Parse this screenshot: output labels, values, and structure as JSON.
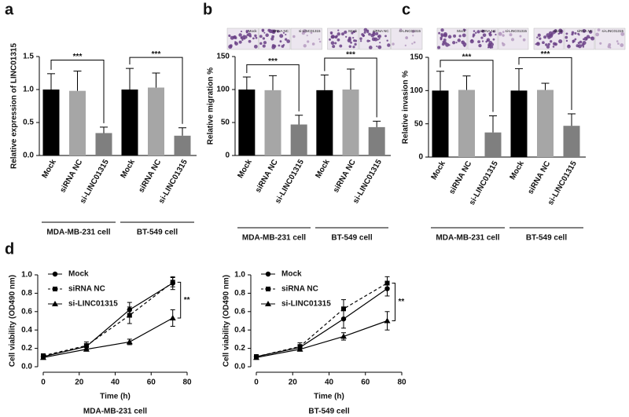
{
  "chart_data": [
    {
      "type": "bar",
      "label": "a",
      "ylabel": "Relative expression of LINC01315",
      "categories": [
        "Mock",
        "siRNA NC",
        "si-LINC01315",
        "Mock",
        "siRNA NC",
        "si-LINC01315"
      ],
      "values": [
        1.0,
        0.98,
        0.34,
        1.0,
        1.03,
        0.3
      ],
      "errors": [
        0.24,
        0.3,
        0.09,
        0.32,
        0.22,
        0.12
      ],
      "colors": [
        "#000000",
        "#a6a6a6",
        "#7f7f7f",
        "#000000",
        "#a6a6a6",
        "#7f7f7f"
      ],
      "groups": [
        {
          "name": "MDA-MB-231 cell",
          "annotation": "***"
        },
        {
          "name": "BT-549 cell",
          "annotation": "***"
        }
      ],
      "ylim": [
        0,
        1.5
      ],
      "yticks": [
        {
          "value": 0,
          "label": "0.0"
        },
        0.5,
        {
          "value": 1,
          "label": "1.0"
        },
        1.5
      ]
    },
    {
      "type": "bar",
      "label": "b",
      "ylabel": "Relative migration %",
      "images": [
        "Mock",
        "siRNA NC",
        "si-LINC01315",
        "Mock",
        "siRNA NC",
        "si-LINC01315"
      ],
      "categories": [
        "Mock",
        "siRNA NC",
        "si-LINC01315",
        "Mock",
        "siRNA NC",
        "si-LINC01315"
      ],
      "values": [
        100,
        99,
        47,
        99,
        100,
        43
      ],
      "errors": [
        19,
        22,
        14,
        23,
        31,
        9
      ],
      "colors": [
        "#000000",
        "#a6a6a6",
        "#7f7f7f",
        "#000000",
        "#a6a6a6",
        "#7f7f7f"
      ],
      "groups": [
        {
          "name": "MDA-MB-231 cell",
          "annotation": "***"
        },
        {
          "name": "BT-549 cell",
          "annotation": "***"
        }
      ],
      "ylim": [
        0,
        150
      ],
      "yticks": [
        0,
        50,
        100,
        150
      ]
    },
    {
      "type": "bar",
      "label": "c",
      "ylabel": "Relative invasion %",
      "images": [
        "Mock",
        "siRNA NC",
        "si-LINC01315",
        "Mock",
        "siRNA NC",
        "si-LINC01315"
      ],
      "categories": [
        "Mock",
        "siRNA NC",
        "si-LINC01315",
        "Mock",
        "siRNA NC",
        "si-LINC01315"
      ],
      "values": [
        100,
        101,
        37,
        100,
        101,
        47
      ],
      "errors": [
        29,
        21,
        25,
        33,
        10,
        18
      ],
      "colors": [
        "#000000",
        "#a6a6a6",
        "#7f7f7f",
        "#000000",
        "#a6a6a6",
        "#7f7f7f"
      ],
      "groups": [
        {
          "name": "MDA-MB-231 cell",
          "annotation": "***"
        },
        {
          "name": "BT-549 cell",
          "annotation": "***"
        }
      ],
      "ylim": [
        0,
        150
      ],
      "yticks": [
        0,
        50,
        100,
        150
      ]
    },
    {
      "type": "line",
      "label": "d",
      "ylabel": "Cell viability (OD490 nm)",
      "xlabel": "Time (h)",
      "caption": "MDA-MB-231 cell",
      "annotation": "**",
      "x": [
        0,
        24,
        48,
        72
      ],
      "series": [
        {
          "name": "Mock",
          "color": "#000000",
          "marker": "circle",
          "dashed": false,
          "values": [
            0.11,
            0.22,
            0.62,
            0.91
          ],
          "errors": [
            0.02,
            0.03,
            0.08,
            0.07
          ]
        },
        {
          "name": "siRNA NC",
          "color": "#000000",
          "marker": "square",
          "dashed": true,
          "values": [
            0.12,
            0.23,
            0.56,
            0.92
          ],
          "errors": [
            0.02,
            0.04,
            0.09,
            0.05
          ]
        },
        {
          "name": "si-LINC01315",
          "color": "#000000",
          "marker": "triangle",
          "dashed": false,
          "values": [
            0.1,
            0.19,
            0.27,
            0.53
          ],
          "errors": [
            0.02,
            0.02,
            0.03,
            0.09
          ]
        }
      ],
      "xlim": [
        0,
        80
      ],
      "xticks": [
        0,
        20,
        40,
        60,
        80
      ],
      "ylim": [
        0,
        1
      ],
      "yticks": [
        {
          "value": 0,
          "label": "0.0"
        },
        0.2,
        0.4,
        0.6,
        0.8,
        {
          "value": 1,
          "label": "1.0"
        }
      ]
    },
    {
      "type": "line",
      "ylabel": "Cell viability (OD490 nm)",
      "xlabel": "Time (h)",
      "caption": "BT-549 cell",
      "annotation": "**",
      "x": [
        0,
        24,
        48,
        72
      ],
      "series": [
        {
          "name": "Mock",
          "color": "#000000",
          "marker": "circle",
          "dashed": false,
          "values": [
            0.11,
            0.21,
            0.52,
            0.85
          ],
          "errors": [
            0.02,
            0.03,
            0.1,
            0.08
          ]
        },
        {
          "name": "siRNA NC",
          "color": "#000000",
          "marker": "square",
          "dashed": true,
          "values": [
            0.11,
            0.22,
            0.63,
            0.91
          ],
          "errors": [
            0.02,
            0.04,
            0.1,
            0.07
          ]
        },
        {
          "name": "si-LINC01315",
          "color": "#000000",
          "marker": "triangle",
          "dashed": false,
          "values": [
            0.1,
            0.19,
            0.33,
            0.5
          ],
          "errors": [
            0.02,
            0.02,
            0.04,
            0.1
          ]
        }
      ],
      "xlim": [
        0,
        80
      ],
      "xticks": [
        0,
        20,
        40,
        60,
        80
      ],
      "ylim": [
        0,
        1
      ],
      "yticks": [
        {
          "value": 0,
          "label": "0.0"
        },
        0.2,
        0.4,
        0.6,
        0.8,
        {
          "value": 1,
          "label": "1.0"
        }
      ]
    }
  ]
}
